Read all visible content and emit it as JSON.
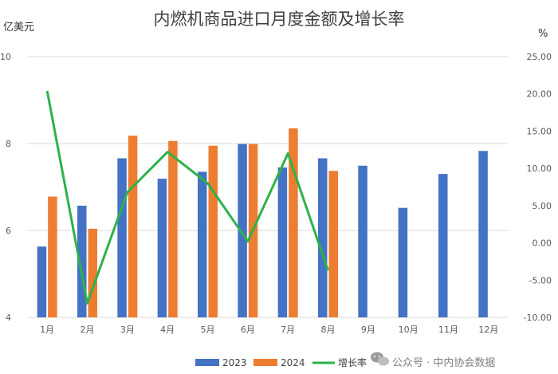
{
  "chart_data": {
    "type": "bar",
    "title": "内燃机商品进口月度金额及增长率",
    "y_left_label": "亿美元",
    "y_right_label": "%",
    "categories": [
      "1月",
      "2月",
      "3月",
      "4月",
      "5月",
      "6月",
      "7月",
      "8月",
      "9月",
      "10月",
      "11月",
      "12月"
    ],
    "series": [
      {
        "name": "2023",
        "kind": "bar",
        "axis": "left",
        "color": "#4472C4",
        "values": [
          5.63,
          6.57,
          7.66,
          7.19,
          7.35,
          7.99,
          7.45,
          7.66,
          7.49,
          6.52,
          7.3,
          7.83
        ]
      },
      {
        "name": "2024",
        "kind": "bar",
        "axis": "left",
        "color": "#ED7D31",
        "values": [
          6.78,
          6.04,
          8.18,
          8.06,
          7.95,
          7.99,
          8.35,
          7.37,
          null,
          null,
          null,
          null
        ]
      },
      {
        "name": "增长率",
        "kind": "line",
        "axis": "right",
        "color": "#2DB24A",
        "values": [
          20.4,
          -8.1,
          6.8,
          12.2,
          8.0,
          0.2,
          12.0,
          -3.7,
          null,
          null,
          null,
          null
        ]
      }
    ],
    "y_left": {
      "min": 4,
      "max": 10,
      "ticks": [
        "4",
        "6",
        "8",
        "10"
      ]
    },
    "y_right": {
      "min": -10,
      "max": 25,
      "ticks": [
        "-10.00",
        "-5.00",
        "0.00",
        "5.00",
        "10.00",
        "15.00",
        "20.00",
        "25.00"
      ]
    },
    "grid": true,
    "legend_position": "bottom"
  },
  "watermark": {
    "text": "公众号 · 中内协会数据",
    "icon": "wechat-icon"
  }
}
